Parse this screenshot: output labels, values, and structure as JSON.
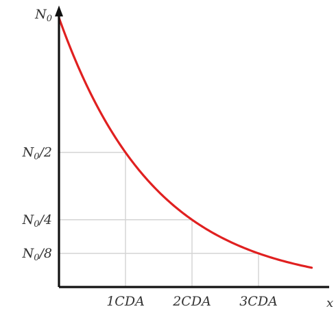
{
  "chart_data": {
    "type": "line",
    "xlabel": "x",
    "ylabel": "",
    "x_tick_labels": [
      "1CDA",
      "2CDA",
      "3CDA"
    ],
    "y_tick_labels": [
      "N₀",
      "N₀/2",
      "N₀/4",
      "N₀/8"
    ],
    "x_ticks": [
      1,
      2,
      3
    ],
    "y_ticks": [
      1,
      0.5,
      0.25,
      0.125
    ],
    "xlim": [
      0,
      4
    ],
    "ylim": [
      0,
      1
    ],
    "guide_points": [
      {
        "x": 1,
        "y": 0.5
      },
      {
        "x": 2,
        "y": 0.25
      },
      {
        "x": 3,
        "y": 0.125
      }
    ],
    "series": [
      {
        "color": "#e02020",
        "function": "exponential decay, halving per 1 CDA",
        "x": [
          0,
          0.5,
          1,
          1.5,
          2,
          2.5,
          3,
          3.5,
          3.8
        ],
        "y": [
          1,
          0.7071,
          0.5,
          0.3536,
          0.25,
          0.1768,
          0.125,
          0.0884,
          0.0718
        ]
      }
    ],
    "grid": false,
    "legend": "none"
  }
}
